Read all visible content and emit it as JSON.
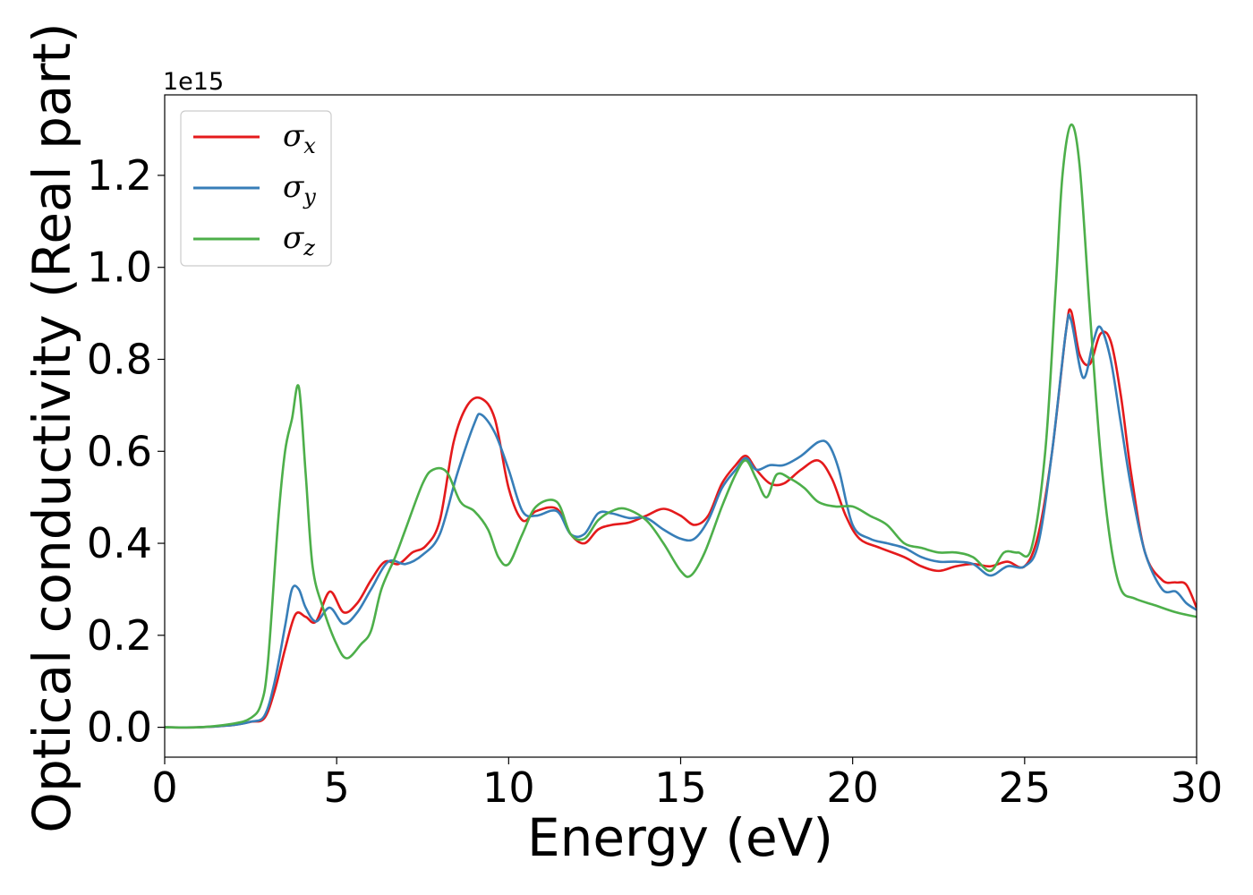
{
  "chart_data": {
    "type": "line",
    "title": "",
    "xlabel": "Energy (eV)",
    "ylabel": "Optical conductivity (Real part)",
    "y_offset_text": "1e15",
    "xlim": [
      0,
      30
    ],
    "ylim": [
      -0.065,
      1.375
    ],
    "x_ticks": [
      0,
      5,
      10,
      15,
      20,
      25,
      30
    ],
    "x_tick_labels": [
      "0",
      "5",
      "10",
      "15",
      "20",
      "25",
      "30"
    ],
    "y_ticks": [
      0.0,
      0.2,
      0.4,
      0.6,
      0.8,
      1.0,
      1.2
    ],
    "y_tick_labels": [
      "0.0",
      "0.2",
      "0.4",
      "0.6",
      "0.8",
      "1.0",
      "1.2"
    ],
    "grid": false,
    "legend_position": "top-left",
    "series": [
      {
        "name": "σx",
        "symbol": "σ",
        "subscript": "x",
        "color": "#e41a1c",
        "x": [
          0,
          1,
          2,
          2.5,
          2.9,
          3.2,
          3.5,
          3.8,
          4.1,
          4.4,
          4.8,
          5.2,
          5.6,
          6.0,
          6.4,
          6.8,
          7.2,
          7.6,
          8.0,
          8.4,
          8.8,
          9.2,
          9.6,
          10.0,
          10.4,
          10.8,
          11.4,
          11.8,
          12.2,
          12.6,
          13.0,
          13.5,
          14.0,
          14.5,
          15.0,
          15.4,
          15.8,
          16.2,
          16.6,
          16.9,
          17.2,
          17.6,
          18.0,
          18.5,
          19.0,
          19.4,
          19.8,
          20.2,
          20.8,
          21.5,
          22.0,
          22.5,
          23.0,
          23.5,
          24.0,
          24.5,
          25.0,
          25.4,
          25.8,
          26.2,
          26.35,
          26.6,
          26.9,
          27.2,
          27.5,
          27.8,
          28.1,
          28.5,
          29.0,
          29.4,
          29.7,
          30.0
        ],
        "values": [
          0.0,
          0.0,
          0.005,
          0.012,
          0.02,
          0.08,
          0.17,
          0.245,
          0.24,
          0.23,
          0.295,
          0.25,
          0.27,
          0.32,
          0.36,
          0.355,
          0.38,
          0.395,
          0.45,
          0.62,
          0.7,
          0.715,
          0.67,
          0.52,
          0.45,
          0.47,
          0.475,
          0.42,
          0.4,
          0.43,
          0.44,
          0.445,
          0.46,
          0.475,
          0.46,
          0.44,
          0.46,
          0.53,
          0.57,
          0.59,
          0.56,
          0.53,
          0.53,
          0.56,
          0.58,
          0.54,
          0.46,
          0.41,
          0.39,
          0.37,
          0.35,
          0.34,
          0.35,
          0.355,
          0.35,
          0.36,
          0.35,
          0.42,
          0.6,
          0.86,
          0.905,
          0.81,
          0.79,
          0.855,
          0.84,
          0.72,
          0.55,
          0.38,
          0.32,
          0.315,
          0.31,
          0.26
        ]
      },
      {
        "name": "σy",
        "symbol": "σ",
        "subscript": "y",
        "color": "#377eb8",
        "x": [
          0,
          1,
          2,
          2.5,
          2.9,
          3.2,
          3.5,
          3.7,
          3.9,
          4.1,
          4.4,
          4.8,
          5.2,
          5.6,
          6.0,
          6.5,
          7.0,
          7.5,
          8.0,
          8.5,
          9.0,
          9.2,
          9.6,
          10.0,
          10.4,
          10.8,
          11.4,
          11.8,
          12.2,
          12.6,
          13.0,
          13.5,
          14.0,
          14.5,
          15.0,
          15.4,
          15.8,
          16.2,
          16.6,
          16.9,
          17.2,
          17.6,
          18.0,
          18.5,
          19.0,
          19.3,
          19.6,
          20.0,
          20.5,
          21.0,
          21.5,
          22.0,
          22.5,
          23.0,
          23.5,
          24.0,
          24.5,
          25.0,
          25.4,
          25.8,
          26.2,
          26.35,
          26.7,
          27.0,
          27.2,
          27.5,
          27.8,
          28.1,
          28.5,
          29.0,
          29.4,
          29.7,
          30.0
        ],
        "values": [
          0.0,
          0.0,
          0.005,
          0.012,
          0.025,
          0.1,
          0.22,
          0.3,
          0.3,
          0.26,
          0.23,
          0.26,
          0.225,
          0.25,
          0.3,
          0.36,
          0.355,
          0.375,
          0.42,
          0.55,
          0.66,
          0.68,
          0.64,
          0.56,
          0.47,
          0.46,
          0.47,
          0.42,
          0.42,
          0.465,
          0.465,
          0.455,
          0.455,
          0.43,
          0.41,
          0.41,
          0.45,
          0.52,
          0.56,
          0.585,
          0.56,
          0.57,
          0.57,
          0.59,
          0.62,
          0.615,
          0.56,
          0.44,
          0.41,
          0.4,
          0.39,
          0.37,
          0.36,
          0.36,
          0.355,
          0.33,
          0.35,
          0.35,
          0.4,
          0.6,
          0.86,
          0.885,
          0.76,
          0.84,
          0.87,
          0.8,
          0.66,
          0.52,
          0.38,
          0.3,
          0.295,
          0.27,
          0.255
        ]
      },
      {
        "name": "σz",
        "symbol": "σ",
        "subscript": "z",
        "color": "#4daf4a",
        "x": [
          0,
          1,
          2,
          2.5,
          2.8,
          3.0,
          3.3,
          3.5,
          3.7,
          3.9,
          4.1,
          4.3,
          4.6,
          5.0,
          5.3,
          5.7,
          6.0,
          6.3,
          6.7,
          7.0,
          7.5,
          7.8,
          8.2,
          8.6,
          9.0,
          9.4,
          9.7,
          10.0,
          10.4,
          10.8,
          11.4,
          11.8,
          12.2,
          12.6,
          13.0,
          13.4,
          14.0,
          14.5,
          15.0,
          15.3,
          15.7,
          16.2,
          16.6,
          16.9,
          17.2,
          17.5,
          17.8,
          18.2,
          18.6,
          19.0,
          19.5,
          20.0,
          20.5,
          21.0,
          21.5,
          22.0,
          22.5,
          23.0,
          23.5,
          24.0,
          24.4,
          24.8,
          25.2,
          25.6,
          25.9,
          26.1,
          26.35,
          26.6,
          26.9,
          27.2,
          27.5,
          27.8,
          28.2,
          28.8,
          29.4,
          30.0
        ],
        "values": [
          0.0,
          0.0,
          0.008,
          0.02,
          0.05,
          0.14,
          0.45,
          0.6,
          0.67,
          0.74,
          0.55,
          0.35,
          0.26,
          0.18,
          0.15,
          0.18,
          0.21,
          0.3,
          0.37,
          0.43,
          0.53,
          0.56,
          0.555,
          0.49,
          0.47,
          0.43,
          0.37,
          0.355,
          0.42,
          0.48,
          0.49,
          0.42,
          0.41,
          0.45,
          0.47,
          0.475,
          0.45,
          0.4,
          0.34,
          0.33,
          0.38,
          0.48,
          0.55,
          0.58,
          0.54,
          0.5,
          0.55,
          0.54,
          0.52,
          0.49,
          0.48,
          0.48,
          0.46,
          0.44,
          0.4,
          0.39,
          0.38,
          0.38,
          0.37,
          0.34,
          0.38,
          0.38,
          0.39,
          0.6,
          0.95,
          1.2,
          1.31,
          1.22,
          0.9,
          0.6,
          0.4,
          0.3,
          0.28,
          0.265,
          0.25,
          0.24
        ]
      }
    ]
  }
}
